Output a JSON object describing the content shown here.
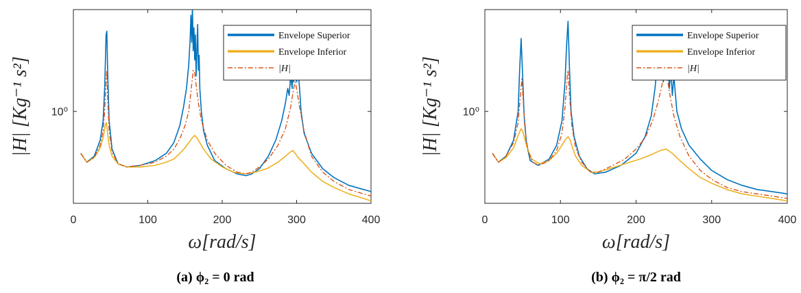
{
  "chart_data": [
    {
      "type": "line",
      "caption": "(a) ϕ₂ = 0 rad",
      "xlabel": "ω[rad/s]",
      "ylabel": "|H| [Kg⁻¹ s²]",
      "xlim": [
        0,
        400
      ],
      "y_scale": "log",
      "ylim": [
        0.35,
        3.2
      ],
      "x_ticks": [
        "0",
        "100",
        "200",
        "300",
        "400"
      ],
      "y_ticks": [
        "10⁰"
      ],
      "legend": {
        "placement": "top-right"
      },
      "series": [
        {
          "name": "Envelope Superior",
          "color": "#0072BD",
          "style": "solid",
          "x": [
            10,
            18,
            28,
            36,
            40,
            42,
            44,
            45,
            46,
            48,
            52,
            60,
            72,
            90,
            110,
            125,
            135,
            143,
            148,
            152,
            155,
            157,
            158,
            159,
            160,
            161,
            162,
            163,
            164,
            165,
            166,
            167,
            168,
            169,
            170,
            172,
            175,
            180,
            190,
            205,
            220,
            232,
            240,
            250,
            262,
            272,
            280,
            285,
            288,
            290,
            292,
            294,
            295,
            296,
            298,
            300,
            302,
            304,
            306,
            310,
            320,
            335,
            350,
            370,
            390,
            400
          ],
          "y": [
            0.62,
            0.56,
            0.6,
            0.72,
            0.9,
            1.3,
            2.4,
            2.5,
            1.6,
            0.9,
            0.65,
            0.55,
            0.53,
            0.54,
            0.57,
            0.62,
            0.7,
            0.85,
            1.05,
            1.3,
            1.7,
            2.3,
            3.0,
            2.2,
            3.3,
            2.0,
            2.6,
            1.8,
            2.4,
            1.5,
            2.0,
            2.7,
            1.6,
            1.9,
            1.3,
            1.0,
            0.8,
            0.68,
            0.57,
            0.52,
            0.49,
            0.48,
            0.49,
            0.52,
            0.6,
            0.72,
            0.9,
            1.1,
            1.3,
            1.2,
            1.5,
            1.3,
            1.7,
            1.4,
            1.9,
            1.4,
            1.6,
            1.3,
            1.0,
            0.78,
            0.62,
            0.52,
            0.47,
            0.43,
            0.41,
            0.4
          ]
        },
        {
          "name": "Envelope Inferior",
          "color": "#EDB120",
          "style": "solid",
          "x": [
            10,
            18,
            28,
            36,
            40,
            42,
            44,
            45,
            46,
            48,
            52,
            60,
            72,
            90,
            110,
            125,
            135,
            143,
            150,
            155,
            160,
            163,
            166,
            170,
            175,
            185,
            200,
            215,
            230,
            245,
            260,
            275,
            285,
            292,
            295,
            298,
            302,
            310,
            320,
            335,
            350,
            370,
            390,
            400
          ],
          "y": [
            0.62,
            0.56,
            0.59,
            0.66,
            0.74,
            0.82,
            0.88,
            0.85,
            0.78,
            0.68,
            0.6,
            0.55,
            0.53,
            0.53,
            0.54,
            0.56,
            0.58,
            0.62,
            0.66,
            0.7,
            0.74,
            0.76,
            0.74,
            0.7,
            0.65,
            0.58,
            0.53,
            0.5,
            0.49,
            0.5,
            0.52,
            0.56,
            0.6,
            0.63,
            0.64,
            0.62,
            0.59,
            0.55,
            0.5,
            0.45,
            0.42,
            0.39,
            0.37,
            0.36
          ]
        },
        {
          "name": "|H|",
          "color": "#D95319",
          "style": "dashdot",
          "x": [
            10,
            18,
            28,
            36,
            40,
            42,
            44,
            45,
            46,
            48,
            52,
            60,
            72,
            90,
            110,
            125,
            135,
            143,
            150,
            155,
            158,
            161,
            163,
            165,
            168,
            172,
            180,
            190,
            205,
            220,
            232,
            240,
            250,
            262,
            275,
            285,
            292,
            296,
            298,
            300,
            304,
            310,
            320,
            335,
            350,
            370,
            390,
            400
          ],
          "y": [
            0.62,
            0.56,
            0.59,
            0.68,
            0.8,
            1.0,
            1.4,
            1.6,
            1.2,
            0.8,
            0.63,
            0.55,
            0.53,
            0.54,
            0.56,
            0.6,
            0.65,
            0.73,
            0.85,
            1.0,
            1.25,
            1.6,
            1.55,
            1.35,
            1.1,
            0.9,
            0.72,
            0.62,
            0.54,
            0.5,
            0.49,
            0.5,
            0.53,
            0.58,
            0.68,
            0.82,
            1.05,
            1.3,
            1.4,
            1.3,
            1.05,
            0.8,
            0.6,
            0.5,
            0.45,
            0.41,
            0.39,
            0.38
          ]
        }
      ]
    },
    {
      "type": "line",
      "caption": "(b) ϕ₂ = π/2 rad",
      "xlabel": "ω[rad/s]",
      "ylabel": "|H| [Kg⁻¹ s²]",
      "xlim": [
        0,
        400
      ],
      "y_scale": "log",
      "ylim": [
        0.35,
        3.2
      ],
      "x_ticks": [
        "0",
        "100",
        "200",
        "300",
        "400"
      ],
      "y_ticks": [
        "10⁰"
      ],
      "legend": {
        "placement": "top-right"
      },
      "series": [
        {
          "name": "Envelope Superior",
          "color": "#0072BD",
          "style": "solid",
          "x": [
            10,
            18,
            28,
            38,
            44,
            46,
            48,
            50,
            52,
            55,
            60,
            70,
            85,
            95,
            102,
            106,
            108,
            110,
            112,
            114,
            118,
            125,
            135,
            145,
            160,
            180,
            200,
            212,
            220,
            225,
            228,
            230,
            232,
            234,
            236,
            238,
            240,
            242,
            244,
            246,
            248,
            250,
            254,
            260,
            270,
            285,
            300,
            320,
            340,
            360,
            380,
            400
          ],
          "y": [
            0.62,
            0.56,
            0.6,
            0.72,
            1.0,
            1.6,
            2.3,
            1.5,
            0.95,
            0.7,
            0.57,
            0.54,
            0.58,
            0.68,
            0.9,
            1.4,
            2.1,
            2.8,
            1.6,
            1.0,
            0.75,
            0.6,
            0.52,
            0.49,
            0.5,
            0.54,
            0.62,
            0.75,
            0.95,
            1.3,
            1.7,
            2.6,
            1.6,
            2.2,
            1.4,
            2.0,
            1.5,
            1.9,
            1.3,
            1.6,
            1.2,
            1.5,
            1.0,
            0.82,
            0.68,
            0.58,
            0.51,
            0.46,
            0.43,
            0.41,
            0.4,
            0.39
          ]
        },
        {
          "name": "Envelope Inferior",
          "color": "#EDB120",
          "style": "solid",
          "x": [
            10,
            18,
            28,
            38,
            44,
            48,
            50,
            52,
            56,
            62,
            72,
            85,
            95,
            102,
            106,
            110,
            113,
            116,
            120,
            128,
            140,
            150,
            165,
            185,
            205,
            220,
            232,
            240,
            248,
            258,
            270,
            285,
            300,
            320,
            340,
            360,
            380,
            400
          ],
          "y": [
            0.62,
            0.56,
            0.59,
            0.66,
            0.76,
            0.82,
            0.8,
            0.75,
            0.66,
            0.58,
            0.55,
            0.57,
            0.62,
            0.68,
            0.72,
            0.75,
            0.72,
            0.66,
            0.6,
            0.54,
            0.5,
            0.5,
            0.52,
            0.55,
            0.58,
            0.61,
            0.64,
            0.65,
            0.62,
            0.57,
            0.52,
            0.47,
            0.44,
            0.41,
            0.39,
            0.38,
            0.37,
            0.36
          ]
        },
        {
          "name": "|H|",
          "color": "#D95319",
          "style": "dashdot",
          "x": [
            10,
            18,
            28,
            38,
            44,
            47,
            49,
            51,
            53,
            57,
            63,
            72,
            85,
            95,
            102,
            106,
            109,
            110,
            112,
            115,
            120,
            128,
            140,
            150,
            165,
            185,
            200,
            212,
            222,
            230,
            236,
            239,
            241,
            244,
            250,
            258,
            270,
            285,
            300,
            320,
            340,
            360,
            380,
            400
          ],
          "y": [
            0.62,
            0.56,
            0.6,
            0.7,
            0.88,
            1.2,
            1.45,
            1.1,
            0.82,
            0.64,
            0.56,
            0.54,
            0.57,
            0.64,
            0.78,
            1.05,
            1.5,
            1.6,
            1.2,
            0.85,
            0.66,
            0.56,
            0.5,
            0.5,
            0.53,
            0.58,
            0.65,
            0.74,
            0.9,
            1.15,
            1.45,
            1.6,
            1.5,
            1.25,
            0.95,
            0.75,
            0.6,
            0.51,
            0.46,
            0.42,
            0.4,
            0.39,
            0.38,
            0.37
          ]
        }
      ]
    }
  ]
}
